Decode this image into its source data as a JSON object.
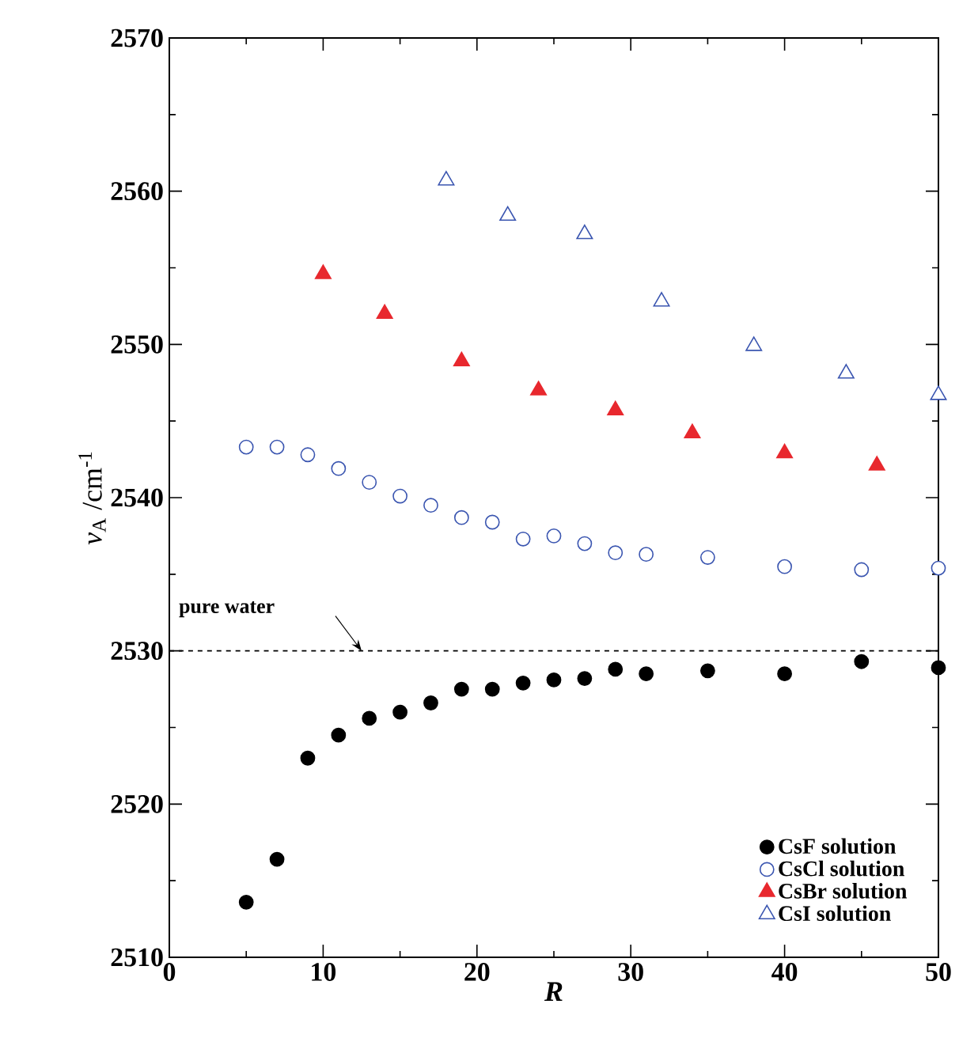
{
  "chart_data": {
    "type": "scatter",
    "xlabel": "R",
    "ylabel": "*ν*$_{A}$ /cm$^{-1}$",
    "xlim": [
      0,
      50
    ],
    "xticks": [
      0,
      10,
      20,
      30,
      40,
      50
    ],
    "ylim": [
      2510,
      2570
    ],
    "yticks": [
      2510,
      2520,
      2530,
      2540,
      2550,
      2560,
      2570
    ],
    "ref_lines": [
      {
        "axis": "y",
        "value": 2530,
        "label": "pure water",
        "color": "#000000",
        "line_style": "dashed"
      }
    ],
    "legend": "bottom right",
    "grid": false,
    "series": [
      {
        "name": "CsF solution",
        "color": "#000000",
        "marker": "circle",
        "x": [
          5,
          7,
          9,
          11,
          13,
          15,
          17,
          19,
          21,
          23,
          25,
          27,
          29,
          31,
          35,
          40,
          45,
          50
        ],
        "values": [
          2513.6,
          2516.4,
          2523.0,
          2524.5,
          2525.6,
          2526.0,
          2526.6,
          2527.5,
          2527.5,
          2527.9,
          2528.1,
          2528.2,
          2528.8,
          2528.5,
          2528.7,
          2528.5,
          2529.3,
          2528.9
        ]
      },
      {
        "name": "CsCl solution",
        "color": "#3a55b0",
        "marker": "circle-open",
        "x": [
          5,
          7,
          9,
          11,
          13,
          15,
          17,
          19,
          21,
          23,
          25,
          27,
          29,
          31,
          35,
          40,
          45,
          50
        ],
        "values": [
          2543.3,
          2543.3,
          2542.8,
          2541.9,
          2541.0,
          2540.1,
          2539.5,
          2538.7,
          2538.4,
          2537.3,
          2537.5,
          2537.0,
          2536.4,
          2536.3,
          2536.1,
          2535.5,
          2535.3,
          2535.4
        ]
      },
      {
        "name": "CsBr solution",
        "color": "#e8282e",
        "marker": "triangle",
        "x": [
          10,
          14,
          19,
          24,
          29,
          34,
          40,
          46
        ],
        "values": [
          2554.6,
          2552.0,
          2548.9,
          2547.0,
          2545.7,
          2544.2,
          2542.9,
          2542.1
        ]
      },
      {
        "name": "CsI solution",
        "color": "#3a55b0",
        "marker": "triangle-open",
        "x": [
          18,
          22,
          27,
          32,
          38,
          44,
          50
        ],
        "values": [
          2560.7,
          2558.4,
          2557.2,
          2552.8,
          2549.9,
          2548.1,
          2546.7
        ]
      }
    ]
  }
}
